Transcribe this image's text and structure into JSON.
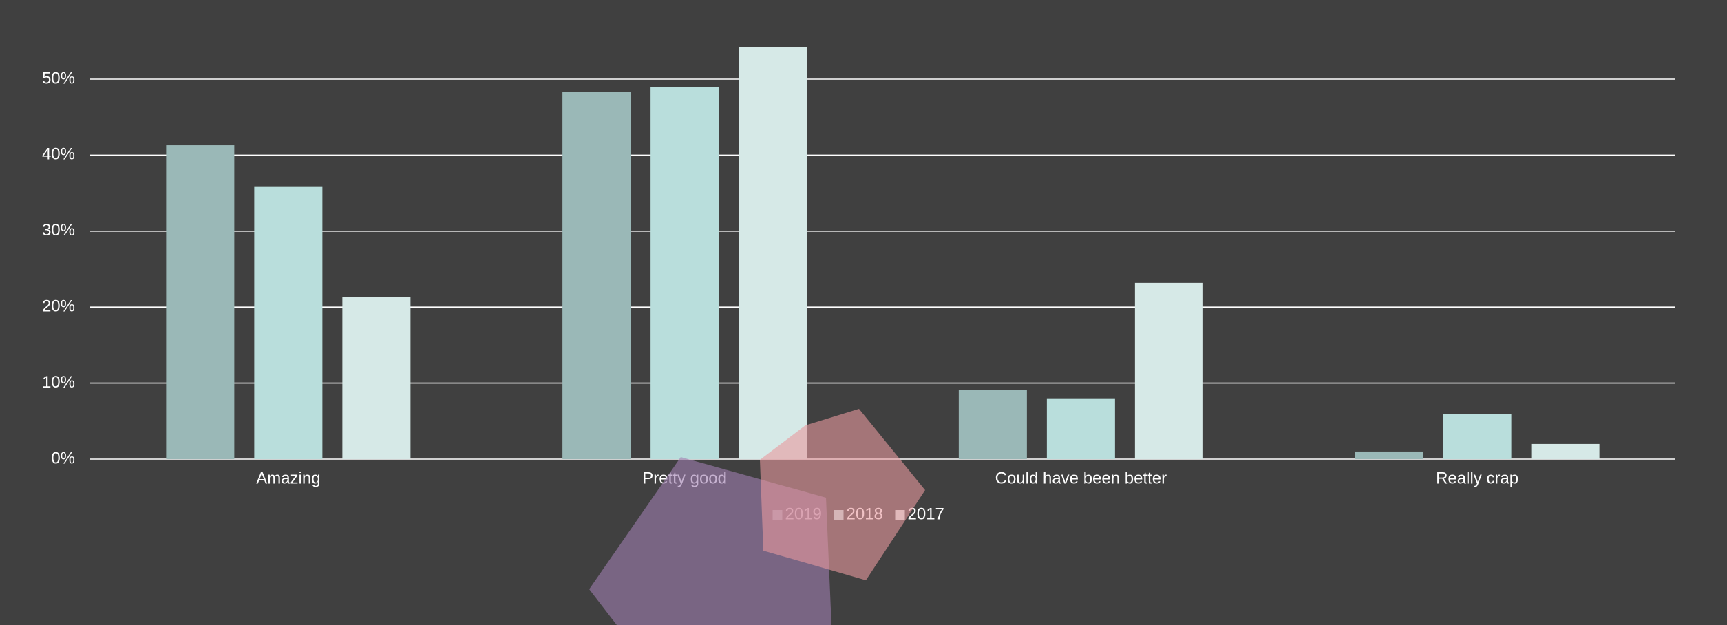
{
  "chart_data": {
    "type": "bar",
    "categories": [
      "Amazing",
      "Pretty good",
      "Could have been better",
      "Really crap"
    ],
    "series": [
      {
        "name": "2019",
        "color": "#9ab8b7",
        "values": [
          41.3,
          48.3,
          9.1,
          1.0
        ]
      },
      {
        "name": "2018",
        "color": "#b9dedc",
        "values": [
          35.9,
          49.0,
          8.0,
          5.9
        ]
      },
      {
        "name": "2017",
        "color": "#d6e9e7",
        "values": [
          21.3,
          54.2,
          23.2,
          2.0
        ]
      }
    ],
    "ylim": [
      0,
      60
    ],
    "yticks": [
      {
        "value": 0,
        "label": "0%"
      },
      {
        "value": 10,
        "label": "10%"
      },
      {
        "value": 20,
        "label": "20%"
      },
      {
        "value": 30,
        "label": "30%"
      },
      {
        "value": 40,
        "label": "40%"
      },
      {
        "value": 50,
        "label": "50%"
      }
    ],
    "grid": true,
    "legend": "bottom"
  }
}
